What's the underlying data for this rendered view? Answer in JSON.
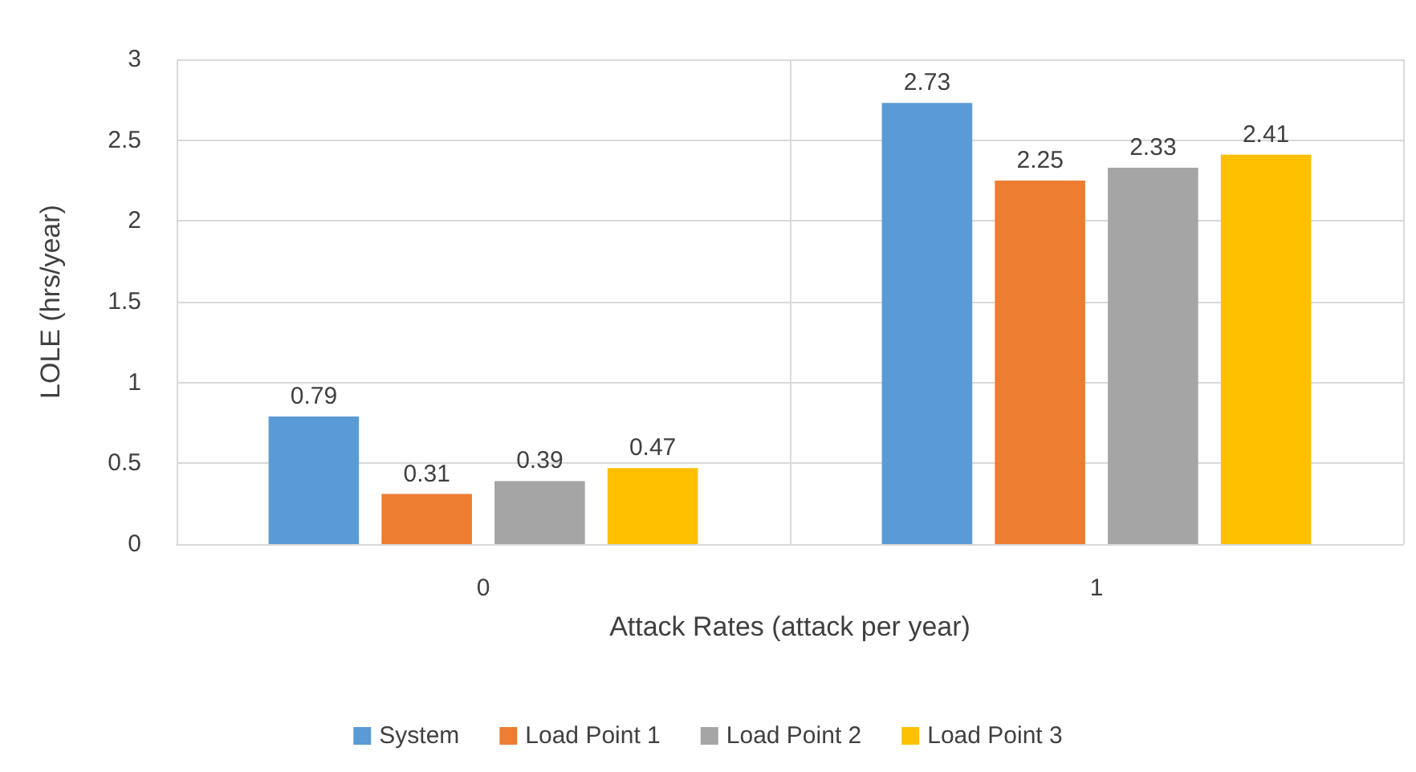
{
  "chart_data": {
    "type": "bar",
    "xlabel": "Attack Rates (attack per year)",
    "ylabel": "LOLE (hrs/year)",
    "categories": [
      "0",
      "1"
    ],
    "series": [
      {
        "name": "System",
        "color": "#5b9bd5",
        "values": [
          0.79,
          2.73
        ]
      },
      {
        "name": "Load Point 1",
        "color": "#ed7d31",
        "values": [
          0.31,
          2.25
        ]
      },
      {
        "name": "Load Point 2",
        "color": "#a5a5a5",
        "values": [
          0.39,
          2.33
        ]
      },
      {
        "name": "Load Point 3",
        "color": "#ffc000",
        "values": [
          0.47,
          2.41
        ]
      }
    ],
    "ylim": [
      0,
      3
    ],
    "yticks": [
      0,
      0.5,
      1,
      1.5,
      2,
      2.5,
      3
    ],
    "grid": true,
    "legend": "bottom",
    "data_labels": true
  }
}
